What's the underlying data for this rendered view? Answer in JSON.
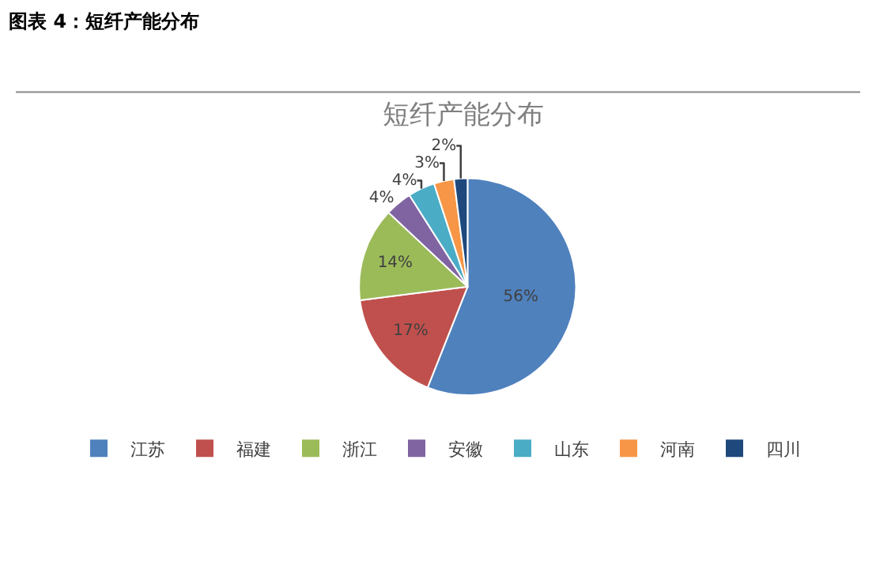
{
  "chart_data": {
    "type": "pie",
    "title": "图表 4：短纤产能分布",
    "subtitle": "短纤产能分布",
    "categories": [
      "江苏",
      "福建",
      "浙江",
      "安徽",
      "山东",
      "河南",
      "四川"
    ],
    "values": [
      56,
      17,
      14,
      4,
      4,
      3,
      2
    ],
    "value_labels": [
      "56%",
      "17%",
      "14%",
      "4%",
      "4%",
      "3%",
      "2%"
    ],
    "colors": [
      "#4f81bd",
      "#c0504d",
      "#9bbb59",
      "#8064a2",
      "#4bacc6",
      "#f79646",
      "#1f497d"
    ],
    "legend": "bottom"
  }
}
